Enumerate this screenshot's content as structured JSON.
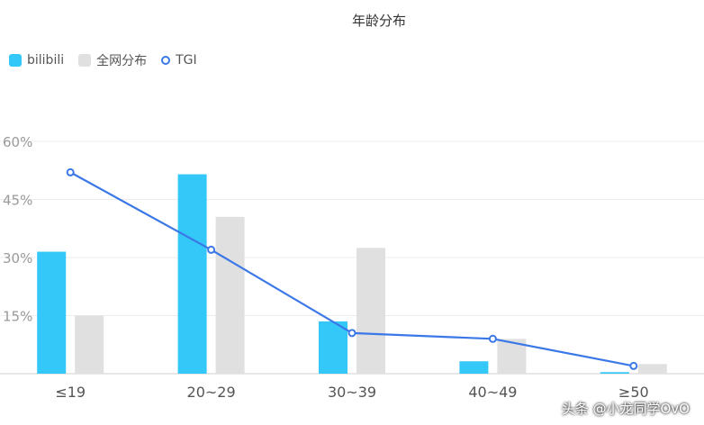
{
  "chart_data": {
    "type": "bar",
    "title": "年龄分布",
    "categories": [
      "≤19",
      "20~29",
      "30~39",
      "40~49",
      "≥50"
    ],
    "series": [
      {
        "name": "bilibili",
        "type": "bar",
        "color": "#33c8f7",
        "values": [
          31.5,
          51.5,
          13.5,
          3.2,
          0.4
        ]
      },
      {
        "name": "全网分布",
        "type": "bar",
        "color": "#e0e0e0",
        "values": [
          15,
          40.5,
          32.5,
          9,
          2.5
        ]
      },
      {
        "name": "TGI",
        "type": "line",
        "color": "#3b78e7",
        "values": [
          52,
          32,
          10.5,
          9,
          2
        ]
      }
    ],
    "y_ticks": [
      "15%",
      "30%",
      "45%",
      "60%"
    ],
    "ylim": [
      0,
      60
    ],
    "grid": true,
    "legend_position": "top-left"
  },
  "watermark": "头条 @小龙同学OvO"
}
